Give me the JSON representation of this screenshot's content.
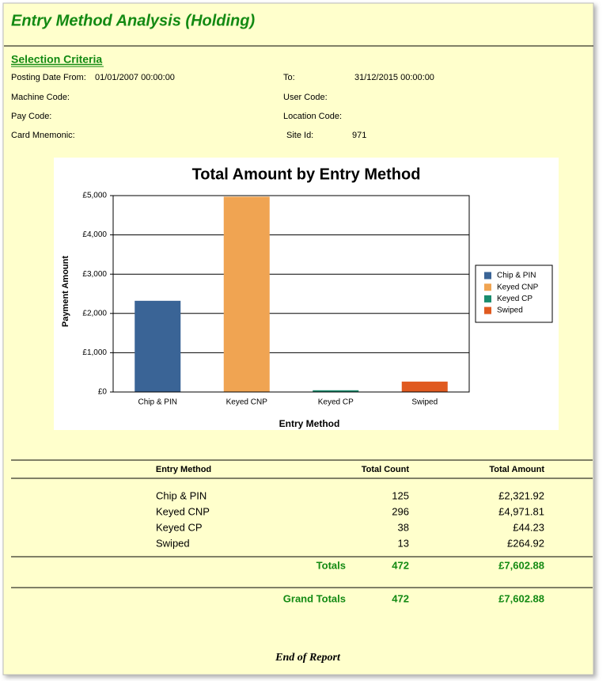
{
  "header": {
    "title": "Entry Method Analysis (Holding)"
  },
  "criteria": {
    "heading": "Selection Criteria",
    "fields": [
      {
        "label": "Posting Date From:",
        "value": "01/01/2007 00:00:00"
      },
      {
        "label": "To:",
        "value": "31/12/2015 00:00:00"
      },
      {
        "label": "Machine Code:"
      },
      {
        "label": "User Code:"
      },
      {
        "label": "Pay Code:"
      },
      {
        "label": "Location Code:"
      },
      {
        "label": "Card Mnemonic:"
      },
      {
        "label": "Site Id:",
        "value": "971"
      }
    ]
  },
  "chart_data": {
    "type": "bar",
    "title": "Total Amount by Entry Method",
    "x_label": "Entry Method",
    "y_label": "Payment Amount",
    "categories": [
      "Chip & PIN",
      "Keyed CNP",
      "Keyed CP",
      "Swiped"
    ],
    "values": [
      2321.92,
      4971.81,
      44.23,
      264.92
    ],
    "colors": [
      "#3a6496",
      "#f0a452",
      "#1a8c6e",
      "#e05a20"
    ],
    "ylim": [
      0,
      5000
    ],
    "yticks": [
      {
        "value": 0,
        "label": "£0"
      },
      {
        "value": 1000,
        "label": "£1,000"
      },
      {
        "value": 2000,
        "label": "£2,000"
      },
      {
        "value": 3000,
        "label": "£3,000"
      },
      {
        "value": 4000,
        "label": "£4,000"
      },
      {
        "value": 5000,
        "label": "£5,000"
      }
    ],
    "grid": true,
    "legend": "right"
  },
  "table": {
    "columns": [
      "Entry Method",
      "Total Count",
      "Total Amount"
    ],
    "rows": [
      [
        "Chip & PIN",
        "125",
        "£2,321.92"
      ],
      [
        "Keyed CNP",
        "296",
        "£4,971.81"
      ],
      [
        "Keyed CP",
        "38",
        "£44.23"
      ],
      [
        "Swiped",
        "13",
        "£264.92"
      ]
    ],
    "totals": [
      "Totals",
      "472",
      "£7,602.88"
    ],
    "grand_totals": [
      "Grand Totals",
      "472",
      "£7,602.88"
    ]
  },
  "footer": "End of Report"
}
